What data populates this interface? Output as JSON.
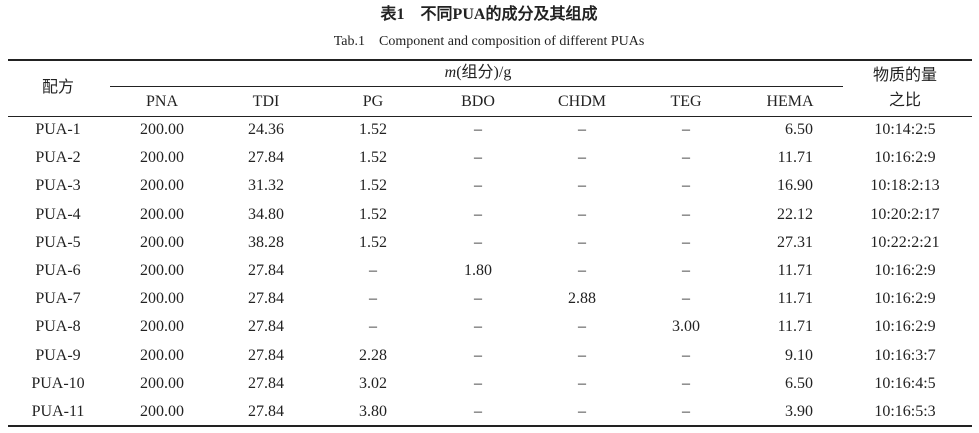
{
  "caption": {
    "title": "表1　不同PUA的成分及其组成",
    "subtitle": "Tab.1　Component and composition of different PUAs"
  },
  "table": {
    "first_header": "配方",
    "group_header": {
      "symbol": "m",
      "unit": "(组分)/g"
    },
    "last_header": [
      "物质的量",
      "之比"
    ],
    "columns": [
      "PNA",
      "TDI",
      "PG",
      "BDO",
      "CHDM",
      "TEG",
      "HEMA"
    ],
    "rows": [
      [
        "PUA-1",
        "200.00",
        "24.36",
        "1.52",
        "–",
        "–",
        "–",
        "6.50",
        "10:14:2:5"
      ],
      [
        "PUA-2",
        "200.00",
        "27.84",
        "1.52",
        "–",
        "–",
        "–",
        "11.71",
        "10:16:2:9"
      ],
      [
        "PUA-3",
        "200.00",
        "31.32",
        "1.52",
        "–",
        "–",
        "–",
        "16.90",
        "10:18:2:13"
      ],
      [
        "PUA-4",
        "200.00",
        "34.80",
        "1.52",
        "–",
        "–",
        "–",
        "22.12",
        "10:20:2:17"
      ],
      [
        "PUA-5",
        "200.00",
        "38.28",
        "1.52",
        "–",
        "–",
        "–",
        "27.31",
        "10:22:2:21"
      ],
      [
        "PUA-6",
        "200.00",
        "27.84",
        "–",
        "1.80",
        "–",
        "–",
        "11.71",
        "10:16:2:9"
      ],
      [
        "PUA-7",
        "200.00",
        "27.84",
        "–",
        "–",
        "2.88",
        "–",
        "11.71",
        "10:16:2:9"
      ],
      [
        "PUA-8",
        "200.00",
        "27.84",
        "–",
        "–",
        "–",
        "3.00",
        "11.71",
        "10:16:2:9"
      ],
      [
        "PUA-9",
        "200.00",
        "27.84",
        "2.28",
        "–",
        "–",
        "–",
        "9.10",
        "10:16:3:7"
      ],
      [
        "PUA-10",
        "200.00",
        "27.84",
        "3.02",
        "–",
        "–",
        "–",
        "6.50",
        "10:16:4:5"
      ],
      [
        "PUA-11",
        "200.00",
        "27.84",
        "3.80",
        "–",
        "–",
        "–",
        "3.90",
        "10:16:5:3"
      ]
    ]
  }
}
